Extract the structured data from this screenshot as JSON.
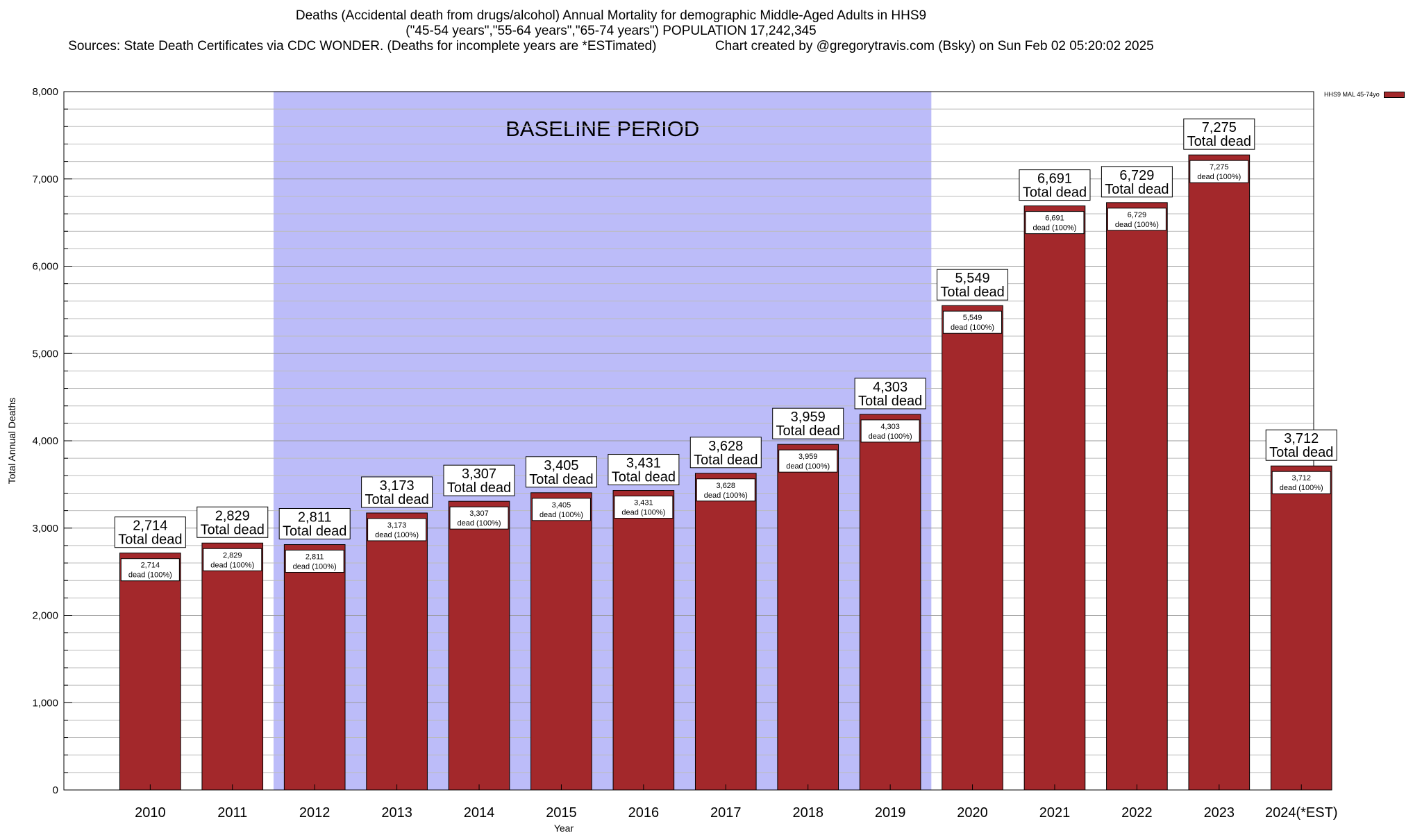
{
  "header": {
    "title_line1": "Deaths (Accidental death from drugs/alcohol) Annual Mortality for demographic Middle-Aged Adults in HHS9",
    "title_line2": "(\"45-54 years\",\"55-64 years\",\"65-74 years\") POPULATION 17,242,345",
    "title_line3_left": "Sources: State Death Certificates via CDC WONDER. (Deaths for incomplete years are *ESTimated)",
    "title_line3_right": "Chart created by @gregorytravis.com (Bsky) on Sun Feb 02 05:20:02 2025"
  },
  "legend": {
    "label": "HHS9 MAL 45-74yo",
    "color": "#a3282b"
  },
  "colors": {
    "bar": "#a3282b",
    "baseline_band": "#bcbcf9",
    "grid": "#aaaaaa"
  },
  "chart_data": {
    "type": "bar",
    "xlabel": "Year",
    "ylabel": "Total Annual Deaths",
    "ylim": [
      0,
      8000
    ],
    "yticks": [
      0,
      1000,
      2000,
      3000,
      4000,
      5000,
      6000,
      7000,
      8000
    ],
    "ytick_labels": [
      "0",
      "1,000",
      "2,000",
      "3,000",
      "4,000",
      "5,000",
      "6,000",
      "7,000",
      "8,000"
    ],
    "grid": true,
    "legend_position": "top-right",
    "categories": [
      "2010",
      "2011",
      "2012",
      "2013",
      "2014",
      "2015",
      "2016",
      "2017",
      "2018",
      "2019",
      "2020",
      "2021",
      "2022",
      "2023",
      "2024(*EST)"
    ],
    "series": [
      {
        "name": "HHS9 MAL 45-74yo",
        "values": [
          2714,
          2829,
          2811,
          3173,
          3307,
          3405,
          3431,
          3628,
          3959,
          4303,
          5549,
          6691,
          6729,
          7275,
          3712
        ]
      }
    ],
    "value_labels": [
      "2,714",
      "2,829",
      "2,811",
      "3,173",
      "3,307",
      "3,405",
      "3,431",
      "3,628",
      "3,959",
      "4,303",
      "5,549",
      "6,691",
      "6,729",
      "7,275",
      "3,712"
    ],
    "total_label_suffix": "Total dead",
    "inner_label_suffix": "dead (100%)",
    "baseline": {
      "label": "BASELINE PERIOD",
      "from_category": "2012",
      "to_category": "2019"
    }
  }
}
